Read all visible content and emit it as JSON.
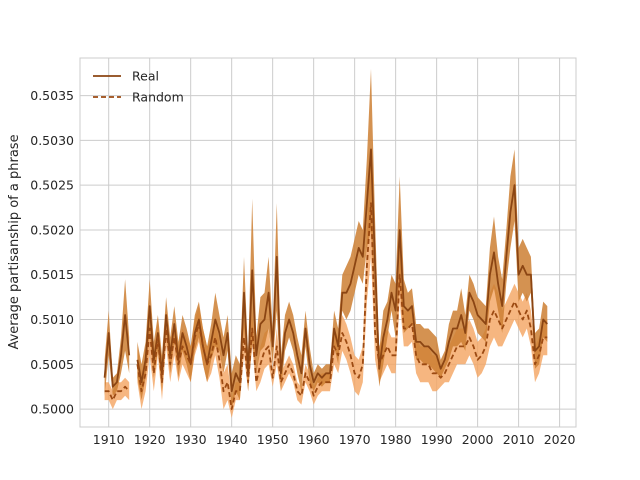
{
  "chart_data": {
    "type": "line",
    "title": "",
    "xlabel": "",
    "ylabel": "Average partisanship of a phrase",
    "xlim": [
      1903,
      2024
    ],
    "ylim": [
      0.4998,
      0.50392
    ],
    "xticks": [
      1910,
      1920,
      1930,
      1940,
      1950,
      1960,
      1970,
      1980,
      1990,
      2000,
      2010,
      2020
    ],
    "yticks": [
      0.5,
      0.5005,
      0.501,
      0.5015,
      0.502,
      0.5025,
      0.503,
      0.5035
    ],
    "ytick_labels": [
      "0.5000",
      "0.5005",
      "0.5010",
      "0.5015",
      "0.5020",
      "0.5025",
      "0.5030",
      "0.5035"
    ],
    "grid": true,
    "legend_position": "top-left",
    "colors": {
      "real": "#8b4513",
      "random": "#9c4a12",
      "real_band": "#cd7f32",
      "random_band": "#f4a460"
    },
    "series": [
      {
        "name": "Real",
        "style": "solid",
        "segments": [
          {
            "x": [
              1909,
              1910,
              1911,
              1912,
              1913,
              1914,
              1915
            ],
            "y": [
              0.50035,
              0.50085,
              0.50025,
              0.5003,
              0.5006,
              0.50105,
              0.5006
            ],
            "band": [
              0.0002,
              0.00025,
              0.0001,
              0.0001,
              0.0002,
              0.0004,
              0.0002
            ]
          },
          {
            "x": [
              1917,
              1918,
              1919,
              1920,
              1921,
              1922,
              1923,
              1924,
              1925,
              1926,
              1927,
              1928,
              1929,
              1930,
              1931,
              1932,
              1933,
              1934,
              1935,
              1936,
              1937,
              1938,
              1939,
              1940,
              1941,
              1942,
              1943,
              1944,
              1945,
              1946,
              1947,
              1948,
              1949,
              1950,
              1951,
              1952,
              1953,
              1954,
              1955,
              1956,
              1957,
              1958,
              1959,
              1960,
              1961,
              1962,
              1963,
              1964,
              1965,
              1966,
              1967,
              1968,
              1969,
              1970,
              1971,
              1972,
              1973,
              1974,
              1975,
              1976,
              1977,
              1978,
              1979,
              1980,
              1981,
              1982,
              1983,
              1984,
              1985,
              1986,
              1987,
              1988,
              1989,
              1990,
              1991,
              1992,
              1993,
              1994,
              1995,
              1996,
              1997,
              1998,
              1999,
              2000,
              2001,
              2002,
              2003,
              2004,
              2005,
              2006,
              2007,
              2008,
              2009,
              2010,
              2011,
              2012,
              2013,
              2014,
              2015,
              2016,
              2017
            ],
            "y": [
              0.50055,
              0.5003,
              0.50055,
              0.50115,
              0.50055,
              0.50085,
              0.5004,
              0.50105,
              0.5006,
              0.50095,
              0.50055,
              0.50085,
              0.5007,
              0.5005,
              0.50085,
              0.501,
              0.5007,
              0.5005,
              0.50075,
              0.501,
              0.50085,
              0.5006,
              0.50085,
              0.5002,
              0.5004,
              0.5003,
              0.5013,
              0.5004,
              0.50155,
              0.5006,
              0.50095,
              0.501,
              0.5013,
              0.5007,
              0.5017,
              0.5004,
              0.50085,
              0.501,
              0.50085,
              0.5006,
              0.5004,
              0.5009,
              0.5005,
              0.5003,
              0.5004,
              0.50035,
              0.5004,
              0.5004,
              0.5009,
              0.5007,
              0.5013,
              0.5013,
              0.5014,
              0.5016,
              0.5018,
              0.5017,
              0.5023,
              0.5029,
              0.5016,
              0.50045,
              0.5008,
              0.501,
              0.5013,
              0.5011,
              0.502,
              0.50115,
              0.5011,
              0.50115,
              0.50075,
              0.50075,
              0.5007,
              0.5007,
              0.50065,
              0.5006,
              0.50045,
              0.50055,
              0.50075,
              0.5009,
              0.5009,
              0.50105,
              0.50085,
              0.5013,
              0.5012,
              0.50105,
              0.501,
              0.50095,
              0.5015,
              0.50175,
              0.5014,
              0.50115,
              0.5017,
              0.5022,
              0.5025,
              0.5015,
              0.5016,
              0.5015,
              0.5015,
              0.50065,
              0.5007,
              0.501,
              0.50095
            ],
            "band": [
              0.0002,
              0.0002,
              0.0002,
              0.0003,
              0.0002,
              0.0002,
              0.0002,
              0.0002,
              0.0002,
              0.0002,
              0.0002,
              0.0002,
              0.0002,
              0.0002,
              0.0002,
              0.0002,
              0.0002,
              0.0002,
              0.0002,
              0.0003,
              0.0002,
              0.0002,
              0.0002,
              0.0002,
              0.0002,
              0.0002,
              0.0004,
              0.0002,
              0.0008,
              0.0002,
              0.0003,
              0.0003,
              0.0004,
              0.0002,
              0.0006,
              0.0002,
              0.0002,
              0.0002,
              0.0002,
              0.0002,
              0.0002,
              0.0002,
              0.0002,
              0.0001,
              0.0001,
              0.0001,
              0.0001,
              0.0001,
              0.0002,
              0.0002,
              0.0002,
              0.0003,
              0.0003,
              0.0003,
              0.0003,
              0.0003,
              0.0005,
              0.0009,
              0.0005,
              0.0002,
              0.0003,
              0.0002,
              0.0002,
              0.0003,
              0.0006,
              0.0003,
              0.0002,
              0.0002,
              0.0002,
              0.0002,
              0.0002,
              0.0002,
              0.0002,
              0.0002,
              0.0001,
              0.0001,
              0.0002,
              0.0002,
              0.0002,
              0.0003,
              0.0002,
              0.0002,
              0.0002,
              0.0002,
              0.0002,
              0.0002,
              0.0003,
              0.0004,
              0.0003,
              0.0003,
              0.0003,
              0.0004,
              0.0004,
              0.0003,
              0.0003,
              0.0003,
              0.0002,
              0.0002,
              0.0002,
              0.0002,
              0.0002
            ]
          }
        ]
      },
      {
        "name": "Random",
        "style": "dashed",
        "segments": [
          {
            "x": [
              1909,
              1910,
              1911,
              1912,
              1913,
              1914,
              1915
            ],
            "y": [
              0.5002,
              0.5002,
              0.5001,
              0.5002,
              0.5002,
              0.50025,
              0.5002
            ],
            "band": [
              0.0001,
              0.0001,
              0.0001,
              0.0001,
              0.0001,
              0.0001,
              0.0001
            ]
          },
          {
            "x": [
              1917,
              1918,
              1919,
              1920,
              1921,
              1922,
              1923,
              1924,
              1925,
              1926,
              1927,
              1928,
              1929,
              1930,
              1931,
              1932,
              1933,
              1934,
              1935,
              1936,
              1937,
              1938,
              1939,
              1940,
              1941,
              1942,
              1943,
              1944,
              1945,
              1946,
              1947,
              1948,
              1949,
              1950,
              1951,
              1952,
              1953,
              1954,
              1955,
              1956,
              1957,
              1958,
              1959,
              1960,
              1961,
              1962,
              1963,
              1964,
              1965,
              1966,
              1967,
              1968,
              1969,
              1970,
              1971,
              1972,
              1973,
              1974,
              1975,
              1976,
              1977,
              1978,
              1979,
              1980,
              1981,
              1982,
              1983,
              1984,
              1985,
              1986,
              1987,
              1988,
              1989,
              1990,
              1991,
              1992,
              1993,
              1994,
              1995,
              1996,
              1997,
              1998,
              1999,
              2000,
              2001,
              2002,
              2003,
              2004,
              2005,
              2006,
              2007,
              2008,
              2009,
              2010,
              2011,
              2012,
              2013,
              2014,
              2015,
              2016,
              2017
            ],
            "y": [
              0.5005,
              0.5002,
              0.5004,
              0.5009,
              0.5004,
              0.5008,
              0.5003,
              0.5009,
              0.5005,
              0.5008,
              0.5005,
              0.5007,
              0.5006,
              0.5005,
              0.5008,
              0.50095,
              0.5007,
              0.5005,
              0.5006,
              0.5008,
              0.50055,
              0.5002,
              0.5003,
              0.5,
              0.5002,
              0.5002,
              0.5008,
              0.5003,
              0.5009,
              0.5003,
              0.5005,
              0.50065,
              0.5007,
              0.50035,
              0.5007,
              0.5003,
              0.5004,
              0.5005,
              0.5004,
              0.5002,
              0.50015,
              0.5004,
              0.5003,
              0.50015,
              0.50025,
              0.5003,
              0.5003,
              0.5003,
              0.5007,
              0.5006,
              0.50085,
              0.50075,
              0.5006,
              0.5004,
              0.50035,
              0.5005,
              0.5016,
              0.5023,
              0.50085,
              0.5005,
              0.5006,
              0.5007,
              0.5006,
              0.5006,
              0.5015,
              0.5009,
              0.5009,
              0.50095,
              0.5006,
              0.5005,
              0.5005,
              0.5005,
              0.5004,
              0.5004,
              0.50035,
              0.5004,
              0.5005,
              0.5006,
              0.5007,
              0.5007,
              0.5007,
              0.5008,
              0.5007,
              0.50055,
              0.5006,
              0.5007,
              0.501,
              0.5011,
              0.501,
              0.5009,
              0.501,
              0.5011,
              0.5012,
              0.5011,
              0.501,
              0.5011,
              0.5009,
              0.5005,
              0.5006,
              0.5008,
              0.5008
            ],
            "band": [
              0.0002,
              0.0002,
              0.0002,
              0.0003,
              0.0002,
              0.0002,
              0.0002,
              0.0002,
              0.0002,
              0.0002,
              0.0002,
              0.0002,
              0.0002,
              0.0002,
              0.0002,
              0.0002,
              0.0002,
              0.0002,
              0.0002,
              0.0002,
              0.0002,
              0.0002,
              0.0002,
              0.0001,
              0.0001,
              0.0001,
              0.0002,
              0.0001,
              0.0002,
              0.0001,
              0.0002,
              0.0002,
              0.0002,
              0.0001,
              0.0002,
              0.0001,
              0.0001,
              0.0001,
              0.0001,
              0.0001,
              0.0001,
              0.0001,
              0.0001,
              0.0001,
              0.0001,
              0.0001,
              0.0001,
              0.0001,
              0.0002,
              0.0002,
              0.0002,
              0.0002,
              0.0002,
              0.0002,
              0.0002,
              0.0002,
              0.0004,
              0.0006,
              0.0003,
              0.0002,
              0.0002,
              0.0002,
              0.0002,
              0.0002,
              0.0003,
              0.0002,
              0.0002,
              0.0002,
              0.0002,
              0.0002,
              0.0002,
              0.0002,
              0.0002,
              0.0002,
              0.0001,
              0.0001,
              0.0002,
              0.0002,
              0.0002,
              0.0002,
              0.0002,
              0.0002,
              0.0002,
              0.0002,
              0.0002,
              0.0002,
              0.0003,
              0.0003,
              0.0003,
              0.0002,
              0.0002,
              0.0002,
              0.0002,
              0.0002,
              0.0002,
              0.0002,
              0.0002,
              0.0002,
              0.0002,
              0.0002,
              0.0002
            ]
          }
        ]
      }
    ]
  }
}
